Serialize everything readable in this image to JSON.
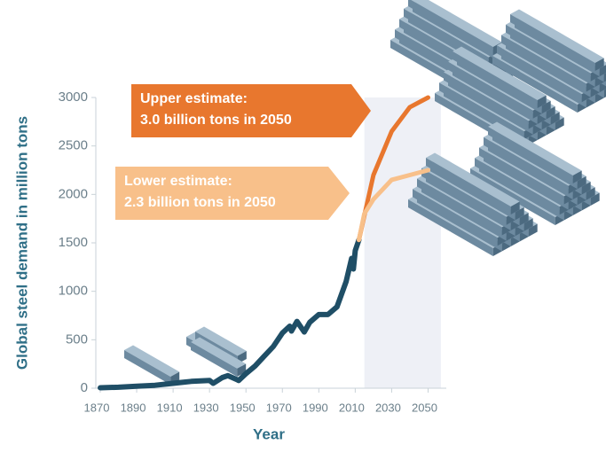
{
  "chart_data": {
    "type": "line",
    "xlabel": "Year",
    "ylabel": "Global steel demand in million tons",
    "xlim": [
      1870,
      2060
    ],
    "ylim": [
      0,
      3000
    ],
    "xticks": [
      1870,
      1890,
      1910,
      1930,
      1950,
      1970,
      1990,
      2010,
      2030,
      2050
    ],
    "yticks": [
      0,
      500,
      1000,
      1500,
      2000,
      2500,
      3000
    ],
    "shaded_xrange": [
      2015,
      2057
    ],
    "series": [
      {
        "color": "#1f4e66",
        "x": [
          1870,
          1880,
          1890,
          1900,
          1910,
          1915,
          1920,
          1925,
          1930,
          1932,
          1937,
          1940,
          1945,
          1946,
          1950,
          1955,
          1960,
          1965,
          1970,
          1974,
          1975,
          1978,
          1982,
          1985,
          1990,
          1995,
          2000,
          2005,
          2008,
          2009,
          2010,
          2012
        ],
        "values": [
          5,
          10,
          20,
          30,
          50,
          60,
          70,
          75,
          80,
          50,
          110,
          130,
          90,
          80,
          150,
          230,
          330,
          430,
          570,
          640,
          590,
          690,
          580,
          680,
          760,
          760,
          840,
          1100,
          1340,
          1230,
          1420,
          1530
        ]
      },
      {
        "color": "#e8772e",
        "x": [
          2012,
          2020,
          2030,
          2040,
          2050
        ],
        "values": [
          1530,
          2200,
          2650,
          2900,
          3000
        ]
      },
      {
        "color": "#f8c08a",
        "x": [
          2012,
          2015,
          2020,
          2030,
          2040,
          2050
        ],
        "values": [
          1530,
          1800,
          1950,
          2150,
          2200,
          2250
        ]
      }
    ],
    "annotations": [
      {
        "lines": [
          "Upper estimate:",
          "3.0 billion tons in 2050"
        ],
        "color": "#e8772e"
      },
      {
        "lines": [
          "Lower estimate:",
          "2.3 billion tons in 2050"
        ],
        "color": "#f8c08a"
      }
    ]
  }
}
